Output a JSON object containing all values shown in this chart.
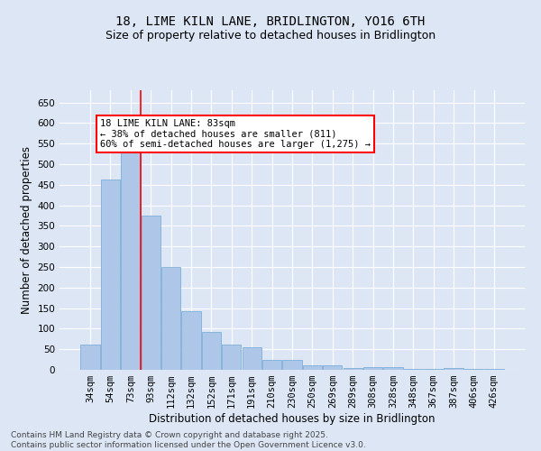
{
  "title": "18, LIME KILN LANE, BRIDLINGTON, YO16 6TH",
  "subtitle": "Size of property relative to detached houses in Bridlington",
  "xlabel": "Distribution of detached houses by size in Bridlington",
  "ylabel": "Number of detached properties",
  "categories": [
    "34sqm",
    "54sqm",
    "73sqm",
    "93sqm",
    "112sqm",
    "132sqm",
    "152sqm",
    "171sqm",
    "191sqm",
    "210sqm",
    "230sqm",
    "250sqm",
    "269sqm",
    "289sqm",
    "308sqm",
    "328sqm",
    "348sqm",
    "367sqm",
    "387sqm",
    "406sqm",
    "426sqm"
  ],
  "values": [
    62,
    462,
    533,
    375,
    250,
    142,
    93,
    62,
    55,
    25,
    25,
    10,
    10,
    5,
    7,
    7,
    3,
    2,
    5,
    2,
    2
  ],
  "bar_color": "#aec6e8",
  "bar_edge_color": "#6fa8d4",
  "vline_x": 2.5,
  "vline_color": "red",
  "annotation_text": "18 LIME KILN LANE: 83sqm\n← 38% of detached houses are smaller (811)\n60% of semi-detached houses are larger (1,275) →",
  "annotation_box_color": "white",
  "annotation_box_edge": "red",
  "ylim": [
    0,
    680
  ],
  "yticks": [
    0,
    50,
    100,
    150,
    200,
    250,
    300,
    350,
    400,
    450,
    500,
    550,
    600,
    650
  ],
  "background_color": "#dce6f5",
  "grid_color": "white",
  "footnote": "Contains HM Land Registry data © Crown copyright and database right 2025.\nContains public sector information licensed under the Open Government Licence v3.0.",
  "title_fontsize": 10,
  "subtitle_fontsize": 9,
  "xlabel_fontsize": 8.5,
  "ylabel_fontsize": 8.5,
  "tick_fontsize": 7.5,
  "annot_fontsize": 7.5,
  "footnote_fontsize": 6.5
}
